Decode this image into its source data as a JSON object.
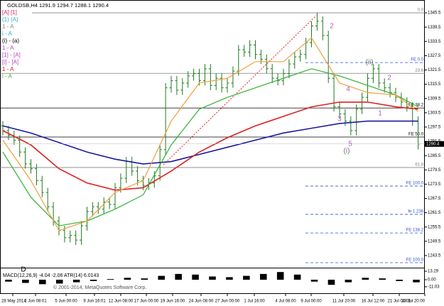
{
  "chart_data": {
    "type": "candlestick",
    "title": "GOLDSB,H4  1291.9 1294.7 1288.1 1290.4",
    "legend_texts": [
      {
        "text": "[A] [1]",
        "color": "#e0245e"
      },
      {
        "text": "(1) (A)",
        "color": "#20b0c8"
      },
      {
        "text": "1 - A",
        "color": "#888888"
      },
      {
        "text": "i - A",
        "color": "#20b0c8"
      },
      {
        "text": "(i) - (a)",
        "color": "#000000"
      },
      {
        "text": "1 - A",
        "color": "#c040c0"
      },
      {
        "text": "[1] - [A]",
        "color": "#c040c0"
      },
      {
        "text": "[i] - [A]",
        "color": "#c040c0"
      },
      {
        "text": "1 - A",
        "color": "#e02020"
      },
      {
        "text": "i - A",
        "color": "#30c030"
      }
    ],
    "x_labels": [
      "28 May 2014",
      "2 Jun 08:01",
      "5 Jun 00:00",
      "9 Jun 16:01",
      "12 Jun 08:00",
      "17 Jun 00:00",
      "19 Jun 16:00",
      "24 Jun 08:00",
      "27 Jun 00:00",
      "1 Jul 16:00",
      "4 Jul 08:00",
      "9 Jul 00:00",
      "11 Jul 20:00",
      "16 Jul 12:00",
      "21 Jul 04:01",
      "23 Jul 20:00"
    ],
    "candle_color": "#1f7a1f",
    "open": [
      1298,
      1296,
      1294,
      1292,
      1287,
      1282,
      1280,
      1275,
      1270,
      1264,
      1258,
      1254,
      1251,
      1252,
      1250,
      1256,
      1262,
      1264,
      1263,
      1266,
      1265,
      1272,
      1276,
      1283,
      1279,
      1275,
      1273,
      1274,
      1277,
      1288,
      1314,
      1317,
      1313,
      1316,
      1319,
      1320,
      1317,
      1322,
      1315,
      1318,
      1314,
      1316,
      1321,
      1330,
      1329,
      1332,
      1328,
      1326,
      1322,
      1318,
      1317,
      1320,
      1324,
      1327,
      1328,
      1333,
      1340,
      1342,
      1336,
      1318,
      1306,
      1303,
      1300,
      1296,
      1305,
      1310,
      1318,
      1322,
      1316,
      1314,
      1312,
      1310,
      1308,
      1306,
      1300
    ],
    "high": [
      1300,
      1298,
      1296,
      1294,
      1289,
      1284,
      1282,
      1277,
      1272,
      1266,
      1260,
      1256,
      1254,
      1254,
      1258,
      1264,
      1266,
      1266,
      1268,
      1268,
      1274,
      1278,
      1285,
      1285,
      1281,
      1277,
      1276,
      1279,
      1290,
      1316,
      1319,
      1319,
      1318,
      1321,
      1322,
      1322,
      1324,
      1324,
      1320,
      1320,
      1318,
      1323,
      1332,
      1332,
      1334,
      1334,
      1330,
      1328,
      1324,
      1320,
      1322,
      1326,
      1329,
      1330,
      1335,
      1342,
      1345.5,
      1344,
      1338,
      1320,
      1308,
      1305,
      1302,
      1307,
      1312,
      1320,
      1324,
      1324,
      1318,
      1316,
      1314,
      1312,
      1310,
      1308,
      1302
    ],
    "low": [
      1294,
      1292,
      1290,
      1285,
      1280,
      1278,
      1273,
      1268,
      1262,
      1256,
      1252,
      1249,
      1249,
      1248,
      1248,
      1254,
      1260,
      1261,
      1261,
      1263,
      1263,
      1270,
      1274,
      1277,
      1273,
      1271,
      1271,
      1272,
      1275,
      1286,
      1312,
      1311,
      1311,
      1314,
      1317,
      1315,
      1315,
      1313,
      1313,
      1312,
      1312,
      1314,
      1319,
      1327,
      1327,
      1326,
      1324,
      1320,
      1316,
      1315,
      1315,
      1318,
      1322,
      1325,
      1326,
      1331,
      1338,
      1334,
      1316,
      1304,
      1301,
      1298,
      1294,
      1294,
      1303,
      1308,
      1316,
      1314,
      1312,
      1310,
      1308,
      1306,
      1304,
      1298,
      1288.1
    ],
    "close": [
      1296,
      1294,
      1292,
      1287,
      1282,
      1280,
      1275,
      1270,
      1264,
      1258,
      1254,
      1251,
      1252,
      1250,
      1256,
      1262,
      1264,
      1263,
      1266,
      1265,
      1272,
      1276,
      1283,
      1279,
      1275,
      1273,
      1274,
      1277,
      1288,
      1314,
      1317,
      1313,
      1316,
      1319,
      1320,
      1317,
      1322,
      1315,
      1318,
      1314,
      1316,
      1321,
      1330,
      1329,
      1332,
      1328,
      1326,
      1322,
      1318,
      1317,
      1320,
      1324,
      1327,
      1328,
      1333,
      1340,
      1342,
      1336,
      1318,
      1306,
      1303,
      1300,
      1296,
      1305,
      1310,
      1318,
      1322,
      1316,
      1314,
      1312,
      1310,
      1308,
      1306,
      1300,
      1290.4
    ],
    "ylim": [
      1239.9,
      1350.3
    ],
    "yticks": [
      1345.5,
      1339.5,
      1333.5,
      1327.5,
      1321.5,
      1315.5,
      1309.5,
      1303.5,
      1297.5,
      1291.5,
      1285.5,
      1279.5,
      1273.5,
      1267.5,
      1261.5,
      1255.5,
      1249.5,
      1243.5
    ],
    "last_price": 1290.4,
    "ma_x": [
      0,
      5,
      10,
      15,
      20,
      25,
      30,
      35,
      40,
      45,
      50,
      55,
      60,
      65,
      70,
      74
    ],
    "moving_averages": [
      {
        "color": "#1a1aa0",
        "values": [
          1298,
          1295,
          1291,
          1287,
          1284,
          1282,
          1283,
          1286,
          1289,
          1292,
          1295,
          1297,
          1299,
          1300,
          1300,
          1300
        ]
      },
      {
        "color": "#e02020",
        "values": [
          1296,
          1290,
          1280,
          1274,
          1271,
          1272,
          1279,
          1287,
          1293,
          1298,
          1302,
          1306,
          1308,
          1308,
          1306,
          1305
        ]
      },
      {
        "color": "#30b030",
        "values": [
          1287,
          1268,
          1256,
          1258,
          1263,
          1269,
          1290,
          1305,
          1310,
          1314,
          1318,
          1322,
          1319,
          1315,
          1311,
          1306
        ]
      },
      {
        "color": "#f0a040",
        "values": [
          1292,
          1275,
          1254,
          1258,
          1270,
          1275,
          1300,
          1316,
          1318,
          1325,
          1325,
          1335,
          1316,
          1312,
          1311,
          1304
        ]
      }
    ],
    "levels": [
      {
        "label": "0.0",
        "value": 1345.5,
        "color": "#808080",
        "dashed": false
      },
      {
        "label": "FE 0.0",
        "value": 1324.6,
        "color": "#3050d0",
        "dashed": true
      },
      {
        "label": "23.6",
        "value": 1320.1,
        "color": "#808080",
        "dashed": false
      },
      {
        "label": "FE 38.2",
        "value": 1305.5,
        "color": "#000000",
        "dashed": false
      },
      {
        "label": "FE 50.0",
        "value": 1293.3,
        "color": "#000000",
        "dashed": false
      },
      {
        "label": "61.8",
        "value": 1280.5,
        "color": "#808080",
        "dashed": false
      },
      {
        "label": "FE 100.0",
        "value": 1272.7,
        "color": "#3050d0",
        "dashed": true
      },
      {
        "label": "fe 1.236",
        "value": 1260.8,
        "color": "#3050d0",
        "dashed": true
      },
      {
        "label": "FE 138.2",
        "value": 1253.0,
        "color": "#3050d0",
        "dashed": true
      },
      {
        "label": "FE 100.0",
        "value": 1240.5,
        "color": "#3050d0",
        "dashed": true
      }
    ],
    "annotations": [
      {
        "text": "2",
        "color": "#b060c0"
      },
      {
        "text": "(ii)",
        "color": "#707070"
      },
      {
        "text": "2",
        "color": "#b060c0"
      },
      {
        "text": "4",
        "color": "#b060c0"
      },
      {
        "text": "3",
        "color": "#b060c0"
      },
      {
        "text": "1",
        "color": "#b060c0"
      },
      {
        "text": "5",
        "color": "#b060c0"
      },
      {
        "text": "(i)",
        "color": "#707070"
      },
      {
        "text": "D",
        "color": "#000000"
      }
    ],
    "indicator": {
      "title": "MACD(12,26,9) -4.04 -2.06 ATR(14) 6.0143",
      "color": "#000000",
      "ylim": [
        -20,
        15.5
      ],
      "yticks": [
        13.29,
        {
          "value": 0,
          "label": "0.00"
        },
        -11.03
      ],
      "values": [
        -3,
        -5,
        -7,
        -6,
        -4,
        -2,
        1,
        3,
        2,
        6,
        9,
        8,
        5,
        4,
        6,
        9,
        12,
        8,
        -3,
        -8,
        -4,
        3,
        2,
        -2,
        -4.04
      ]
    },
    "copyright": "© 2001-2014, MetaQuotes Software Corp."
  }
}
